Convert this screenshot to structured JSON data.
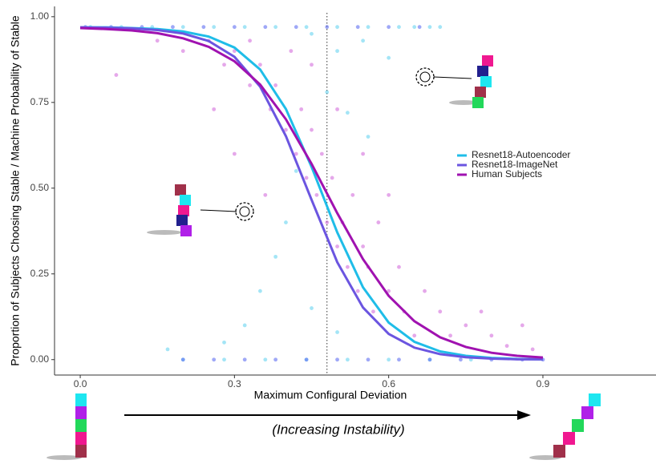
{
  "chart_data": {
    "type": "scatter",
    "x_label": "Maximum Configural Deviation",
    "y_label": "Proportion of Subjects Choosing Stable / Machine Probability of Stable",
    "annotation": "(Increasing Instability)",
    "xlim": [
      -0.05,
      1.12
    ],
    "ylim": [
      -0.045,
      1.03
    ],
    "xticks": [
      {
        "value": 0,
        "label": "0.0"
      },
      {
        "value": 0.3,
        "label": "0.3"
      },
      {
        "value": 0.6,
        "label": "0.6"
      },
      {
        "value": 0.9,
        "label": "0.9"
      }
    ],
    "yticks": [
      {
        "value": 0,
        "label": "0.00"
      },
      {
        "value": 0.25,
        "label": "0.25"
      },
      {
        "value": 0.5,
        "label": "0.50"
      },
      {
        "value": 0.75,
        "label": "0.75"
      },
      {
        "value": 1,
        "label": "1.00"
      }
    ],
    "reference_x": 0.48,
    "x": [
      0,
      0.05,
      0.1,
      0.15,
      0.2,
      0.25,
      0.3,
      0.35,
      0.4,
      0.45,
      0.5,
      0.55,
      0.6,
      0.65,
      0.7,
      0.75,
      0.8,
      0.85,
      0.9
    ],
    "scatter": [
      {
        "color": "#5ad0ee",
        "x": [
          0.02,
          0.08,
          0.14,
          0.2,
          0.26,
          0.32,
          0.38,
          0.44,
          0.5,
          0.56,
          0.62,
          0.68,
          0.2,
          0.28,
          0.36,
          0.44,
          0.52,
          0.6,
          0.68,
          0.76,
          0.45,
          0.5,
          0.55,
          0.6,
          0.48,
          0.52,
          0.56,
          0.42,
          0.4,
          0.38,
          0.35,
          0.32,
          0.28,
          0.45,
          0.5,
          0.17,
          0.65,
          0.7
        ],
        "y": [
          0.97,
          0.97,
          0.97,
          0.97,
          0.97,
          0.97,
          0.97,
          0.97,
          0.97,
          0.97,
          0.97,
          0.97,
          0,
          0,
          0,
          0,
          0,
          0,
          0,
          0,
          0.95,
          0.9,
          0.93,
          0.88,
          0.78,
          0.72,
          0.65,
          0.55,
          0.4,
          0.3,
          0.2,
          0.1,
          0.05,
          0.15,
          0.08,
          0.03,
          0.97,
          0.97
        ]
      },
      {
        "color": "#d060d8",
        "x": [
          0.07,
          0.15,
          0.2,
          0.25,
          0.28,
          0.3,
          0.33,
          0.35,
          0.37,
          0.38,
          0.4,
          0.41,
          0.42,
          0.43,
          0.44,
          0.45,
          0.46,
          0.47,
          0.48,
          0.49,
          0.5,
          0.51,
          0.52,
          0.53,
          0.54,
          0.55,
          0.56,
          0.57,
          0.58,
          0.6,
          0.62,
          0.63,
          0.65,
          0.67,
          0.7,
          0.72,
          0.75,
          0.78,
          0.8,
          0.83,
          0.86,
          0.88,
          0.3,
          0.36,
          0.26,
          0.55,
          0.6,
          0.33,
          0.45,
          0.5
        ],
        "y": [
          0.83,
          0.93,
          0.9,
          0.93,
          0.86,
          0.9,
          0.8,
          0.86,
          0.73,
          0.8,
          0.67,
          0.9,
          0.6,
          0.73,
          0.53,
          0.67,
          0.48,
          0.6,
          0.4,
          0.53,
          0.33,
          0.4,
          0.27,
          0.48,
          0.2,
          0.33,
          0.27,
          0.14,
          0.4,
          0.2,
          0.27,
          0.14,
          0.07,
          0.2,
          0.14,
          0.07,
          0.1,
          0.14,
          0.07,
          0.04,
          0.1,
          0.03,
          0.6,
          0.48,
          0.73,
          0.6,
          0.48,
          0.93,
          0.86,
          0.73
        ]
      },
      {
        "color": "#5060f0",
        "x": [
          0.01,
          0.06,
          0.12,
          0.18,
          0.24,
          0.3,
          0.36,
          0.42,
          0.48,
          0.54,
          0.6,
          0.66,
          0.2,
          0.26,
          0.32,
          0.38,
          0.44,
          0.5,
          0.56,
          0.62,
          0.68,
          0.74,
          0.8,
          0.86,
          0.9
        ],
        "y": [
          0.97,
          0.97,
          0.97,
          0.97,
          0.97,
          0.97,
          0.97,
          0.97,
          0.97,
          0.97,
          0.97,
          0.97,
          0,
          0,
          0,
          0,
          0,
          0,
          0,
          0,
          0,
          0,
          0,
          0,
          0
        ]
      }
    ],
    "series": [
      {
        "name": "Resnet18-Autoencoder",
        "color": "#1fbde8",
        "values": [
          0.969,
          0.969,
          0.967,
          0.964,
          0.957,
          0.942,
          0.91,
          0.846,
          0.731,
          0.562,
          0.371,
          0.211,
          0.108,
          0.052,
          0.024,
          0.011,
          0.005,
          0.002,
          0.001
        ]
      },
      {
        "name": "Resnet18-ImageNet",
        "color": "#6b55e0",
        "values": [
          0.969,
          0.968,
          0.966,
          0.961,
          0.951,
          0.929,
          0.883,
          0.796,
          0.652,
          0.466,
          0.284,
          0.152,
          0.075,
          0.035,
          0.016,
          0.007,
          0.003,
          0.001,
          0.001
        ]
      },
      {
        "name": "Human Subjects",
        "color": "#a012b0",
        "values": [
          0.967,
          0.964,
          0.96,
          0.952,
          0.937,
          0.912,
          0.87,
          0.802,
          0.701,
          0.571,
          0.427,
          0.293,
          0.186,
          0.112,
          0.065,
          0.037,
          0.02,
          0.011,
          0.006
        ]
      }
    ]
  }
}
